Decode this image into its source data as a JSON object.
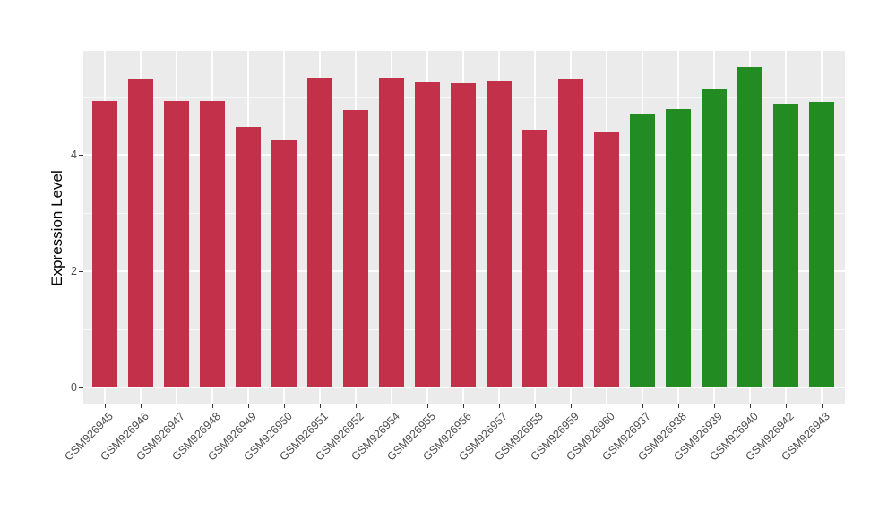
{
  "chart_data": {
    "type": "bar",
    "title": "",
    "xlabel": "",
    "ylabel": "Expression Level",
    "legend": "none",
    "grid": "on",
    "panel_background": "#EBEBEB",
    "figure_background": "#FFFFFF",
    "gridline_color": "#FFFFFF",
    "axis_text_color": "#4D4D4D",
    "axis_title_color": "#000000",
    "tick_mark_color": "#333333",
    "colors": {
      "red": "#C33049",
      "green": "#228B22"
    },
    "y_ticks": [
      0,
      2,
      4
    ],
    "y_minor_ticks": [
      1,
      3,
      5
    ],
    "ylim": [
      -0.3,
      5.8
    ],
    "categories": [
      "GSM926945",
      "GSM926946",
      "GSM926947",
      "GSM926948",
      "GSM926949",
      "GSM926950",
      "GSM926951",
      "GSM926952",
      "GSM926954",
      "GSM926955",
      "GSM926956",
      "GSM926957",
      "GSM926958",
      "GSM926959",
      "GSM926960",
      "GSM926937",
      "GSM926938",
      "GSM926939",
      "GSM926940",
      "GSM926942",
      "GSM926943"
    ],
    "values": [
      4.93,
      5.3,
      4.92,
      4.93,
      4.47,
      4.25,
      5.33,
      4.77,
      5.32,
      5.25,
      5.23,
      5.28,
      4.43,
      5.3,
      4.39,
      4.7,
      4.79,
      5.14,
      5.5,
      4.88,
      4.9
    ],
    "groups": [
      "red",
      "red",
      "red",
      "red",
      "red",
      "red",
      "red",
      "red",
      "red",
      "red",
      "red",
      "red",
      "red",
      "red",
      "red",
      "green",
      "green",
      "green",
      "green",
      "green",
      "green"
    ]
  }
}
